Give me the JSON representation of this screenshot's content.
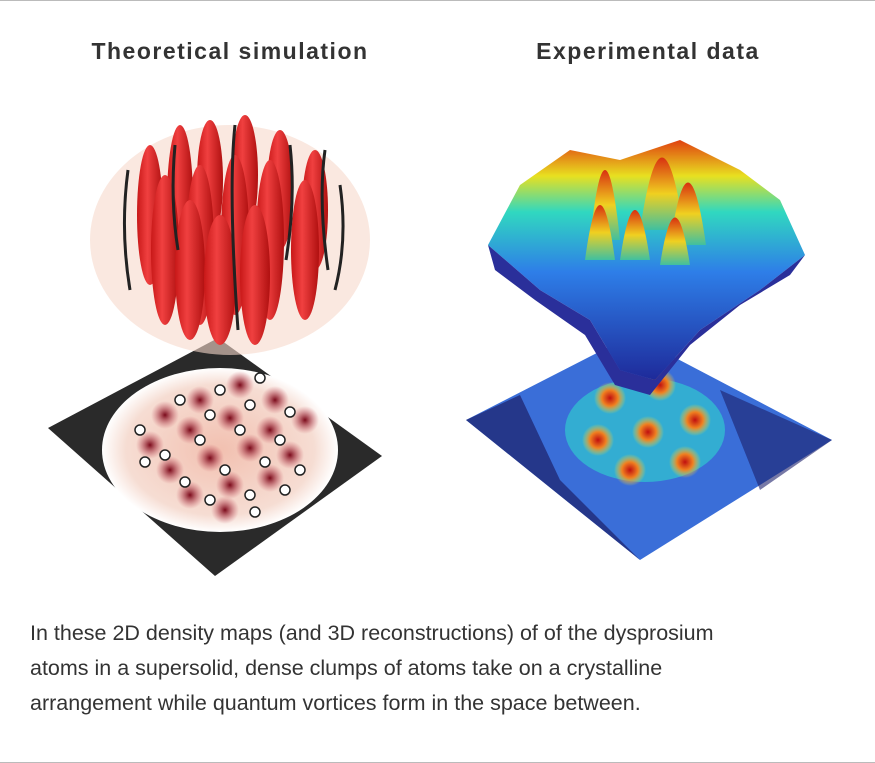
{
  "panels": [
    {
      "title": "Theoretical simulation"
    },
    {
      "title": "Experimental data"
    }
  ],
  "caption": {
    "lines": [
      "In these 2D density maps (and 3D reconstructions) of of the dysprosium",
      "atoms in a supersolid, dense clumps of atoms take on a crystalline",
      "arrangement while quantum vortices form in the space between."
    ]
  }
}
